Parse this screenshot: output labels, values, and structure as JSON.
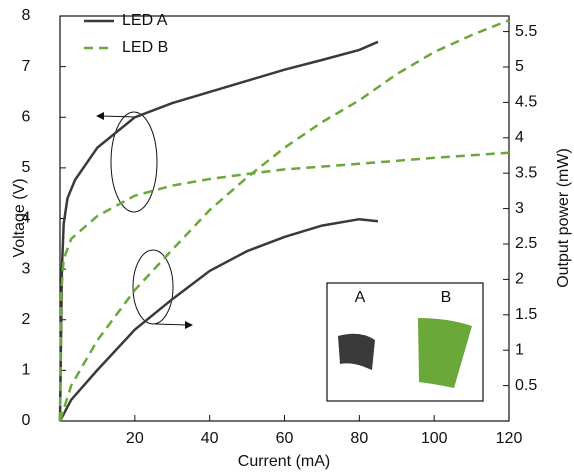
{
  "chart_data": {
    "type": "line",
    "x_label": "Current (mA)",
    "y_label": "Voltage (V)",
    "y2_label": "Output power (mW)",
    "xlim": [
      0,
      120
    ],
    "xticks": [
      20,
      40,
      60,
      80,
      100,
      120
    ],
    "ylim": [
      0,
      8
    ],
    "yticks": [
      0,
      1,
      2,
      3,
      4,
      5,
      6,
      7,
      8
    ],
    "y2lim": [
      0,
      5.72
    ],
    "y2ticks": [
      0.5,
      1,
      1.5,
      2,
      2.5,
      3,
      3.5,
      4,
      4.5,
      5,
      5.5
    ],
    "grid": false,
    "legend": "upper left",
    "series": [
      {
        "name": "LED A",
        "color": "#3a3a3a",
        "dash": "solid",
        "axis": "y",
        "x": [
          0,
          0.5,
          1,
          2,
          4,
          10,
          20,
          30,
          40,
          50,
          60,
          70,
          80,
          85
        ],
        "values": [
          0,
          3.0,
          3.9,
          4.4,
          4.76,
          5.4,
          6.0,
          6.28,
          6.5,
          6.72,
          6.94,
          7.13,
          7.33,
          7.49
        ]
      },
      {
        "name": "LED B",
        "color": "#6aa83a",
        "dash": "dashed",
        "axis": "y",
        "x": [
          0,
          0.3,
          1,
          3,
          10,
          20,
          30,
          40,
          50,
          60,
          80,
          100,
          120
        ],
        "values": [
          0,
          2.5,
          3.2,
          3.6,
          4.05,
          4.45,
          4.65,
          4.78,
          4.88,
          4.97,
          5.08,
          5.2,
          5.3
        ]
      },
      {
        "name": "LED A",
        "color": "#3a3a3a",
        "dash": "solid",
        "axis": "y2",
        "x": [
          0,
          3,
          10,
          20,
          30,
          40,
          50,
          60,
          70,
          80,
          85
        ],
        "values": [
          0,
          0.3,
          0.72,
          1.29,
          1.72,
          2.12,
          2.4,
          2.6,
          2.76,
          2.85,
          2.82
        ]
      },
      {
        "name": "LED B",
        "color": "#6aa83a",
        "dash": "dashed",
        "axis": "y2",
        "x": [
          0,
          3,
          10,
          20,
          30,
          40,
          50,
          60,
          70,
          80,
          90,
          100,
          110,
          120
        ],
        "values": [
          0,
          0.5,
          1.14,
          1.85,
          2.42,
          2.98,
          3.44,
          3.86,
          4.22,
          4.53,
          4.9,
          5.21,
          5.45,
          5.66
        ]
      }
    ],
    "inset": {
      "labels": [
        "A",
        "B"
      ]
    }
  }
}
